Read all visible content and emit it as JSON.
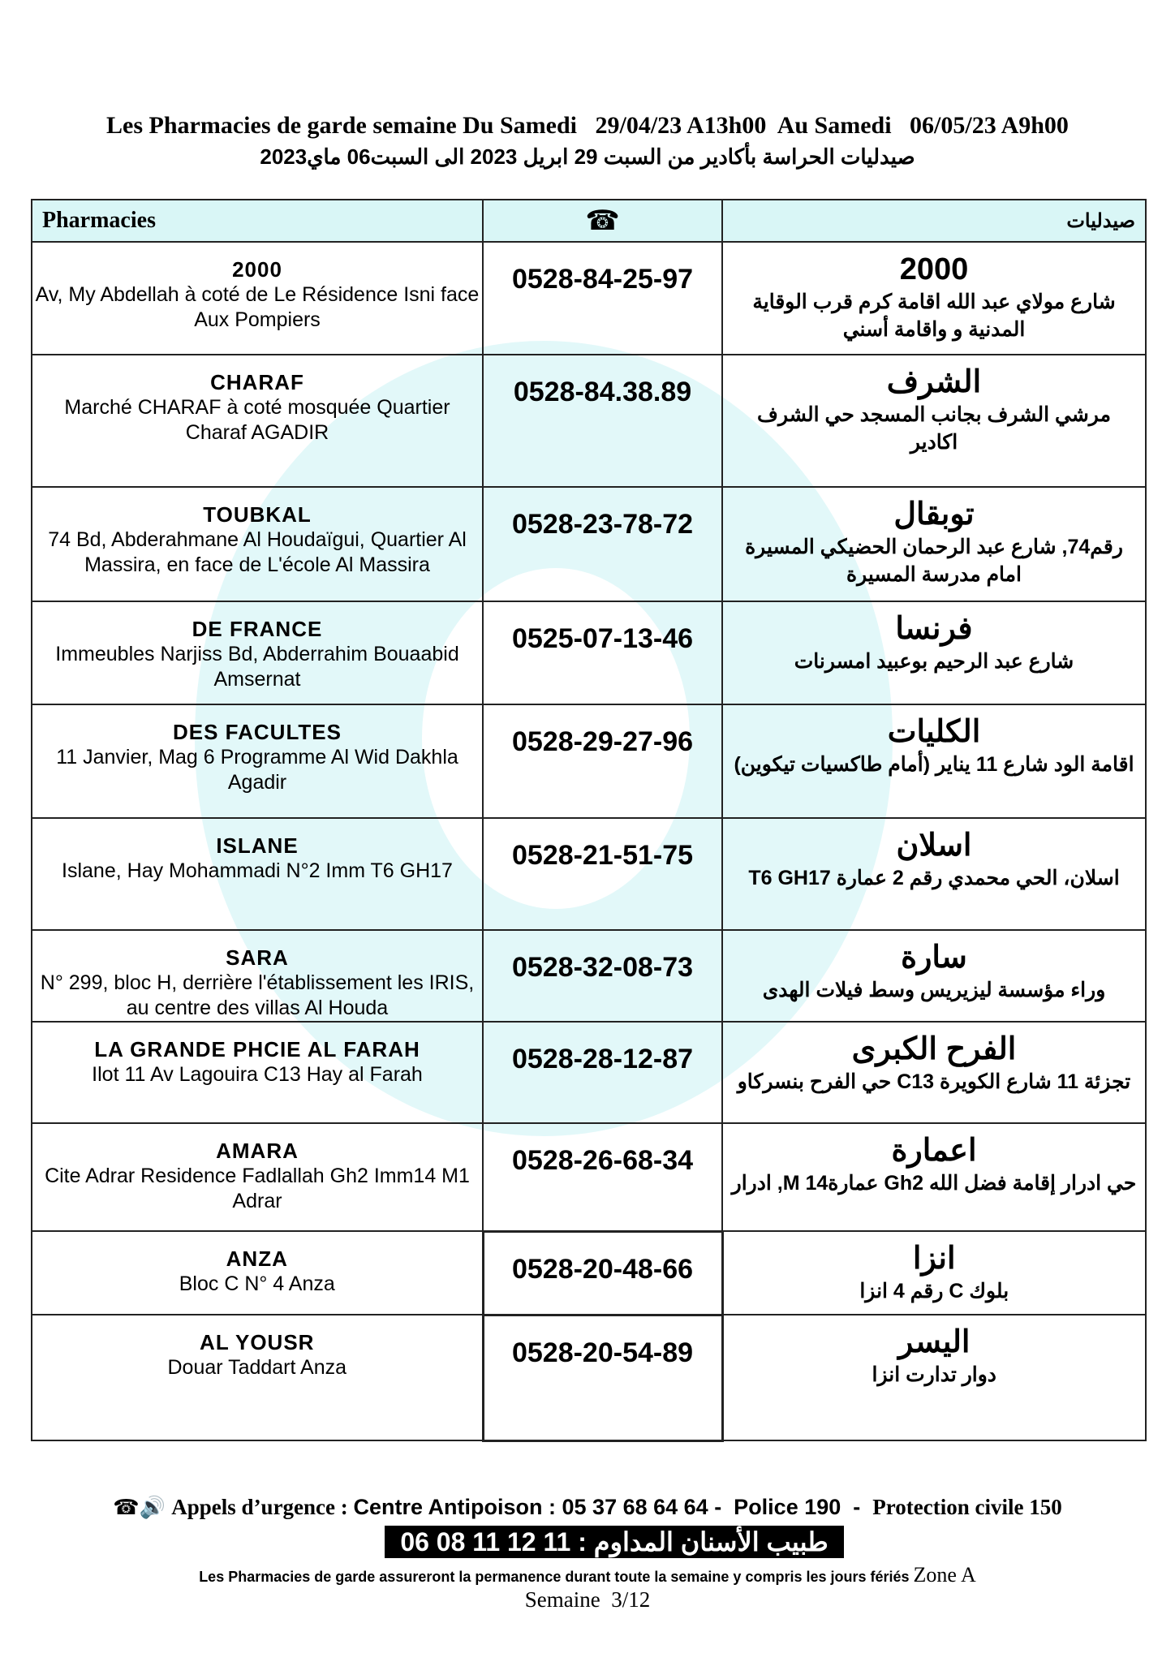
{
  "header": {
    "title_fr": "Les Pharmacies de garde semaine Du Samedi   29/04/23 A13h00  Au Samedi   06/05/23 A9h00",
    "title_ar": "صيدليات الحراسة بأكادير من السبت 29 ابريل 2023 الى السبت06 ماي2023"
  },
  "table": {
    "col_fr": "Pharmacies",
    "col_phone_icon": "telephone-icon",
    "col_ar": "صيدليات",
    "rows": [
      {
        "name": "2000",
        "address": "Av, My Abdellah à coté de Le Résidence Isni face Aux Pompiers",
        "phone": "0528-84-25-97",
        "name_ar": "2000",
        "address_ar": "شارع مولاي عبد الله اقامة كرم قرب الوقاية المدنية و واقامة أسني"
      },
      {
        "name": "CHARAF",
        "address": "Marché CHARAF  à coté mosquée Quartier Charaf  AGADIR",
        "phone": "0528-84.38.89",
        "name_ar": "الشرف",
        "address_ar": "مرشي الشرف بجانب المسجد  حي الشرف اكادير"
      },
      {
        "name": "TOUBKAL",
        "address": "74 Bd, Abderahmane Al Houdaïgui, Quartier Al Massira, en face de L'école  Al Massira",
        "phone": "0528-23-78-72",
        "name_ar": "توبقال",
        "address_ar": "رقم74, شارع عبد الرحمان الحضيكي المسيرة امام مدرسة المسيرة"
      },
      {
        "name": "DE FRANCE",
        "address": "Immeubles Narjiss Bd, Abderrahim Bouaabid  Amsernat",
        "phone": "0525-07-13-46",
        "name_ar": "فرنسا",
        "address_ar": "شارع عبد الرحيم بوعبيد امسرنات"
      },
      {
        "name": "DES FACULTES",
        "address": "11 Janvier, Mag 6 Programme Al Wid Dakhla Agadir",
        "phone": "0528-29-27-96",
        "name_ar": "الكليات",
        "address_ar": "اقامة الود  شارع 11 يناير (أمام طاكسيات تيكوين)"
      },
      {
        "name": "ISLANE",
        "address": "Islane, Hay Mohammadi N°2 Imm T6 GH17",
        "phone": "0528-21-51-75",
        "name_ar": "اسلان",
        "address_ar": "اسلان، الحي محمدي رقم 2 عمارة T6 GH17"
      },
      {
        "name": "SARA",
        "address": "N° 299, bloc H,  derrière l'établissement les IRIS, au centre des villas Al Houda",
        "phone": "0528-32-08-73",
        "name_ar": "سارة",
        "address_ar": "وراء مؤسسة ليزيريس وسط فيلات الهدى"
      },
      {
        "name": "LA GRANDE PHCIE AL FARAH",
        "address": "Ilot 11 Av Lagouira C13 Hay al Farah",
        "phone": "0528-28-12-87",
        "name_ar": "الفرح الكبرى",
        "address_ar": "تجزئة 11 شارع الكويرة C13 حي الفرح بنسركاو"
      },
      {
        "name": "AMARA",
        "address": "Cite Adrar Residence Fadlallah Gh2 Imm14 M1 Adrar",
        "phone": "0528-26-68-34",
        "name_ar": "اعمارة",
        "address_ar": "حي ادرار إقامة فضل الله Gh2 عمارة14 M, ادرار"
      },
      {
        "name": "ANZA",
        "address": "Bloc C N° 4 Anza",
        "phone": "0528-20-48-66",
        "name_ar": "انزا",
        "address_ar": "بلوك C رقم 4  انزا"
      },
      {
        "name": "AL YOUSR",
        "address": "Douar Taddart Anza",
        "phone": "0528-20-54-89",
        "name_ar": "اليسر",
        "address_ar": "دوار تدارت انزا"
      }
    ]
  },
  "footer": {
    "emergency_icon": "phone-emergency-icon",
    "emergency_label": "Appels d’urgence : ",
    "emergency_numbers": "Centre Antipoison : 05 37 68 64 64 -  Police 190  -  ",
    "civil_protection": "Protection civile 150",
    "dentist": "طبيب الأسنان المداوم : 11 12 11 08 06",
    "note": "Les Pharmacies de garde assureront la permanence durant toute la semaine y compris les jours fériés ",
    "zone": "Zone A",
    "week": "Semaine  3/12"
  },
  "colors": {
    "header_bg": "#d9f6f6",
    "watermark": "#d8f6f7"
  }
}
